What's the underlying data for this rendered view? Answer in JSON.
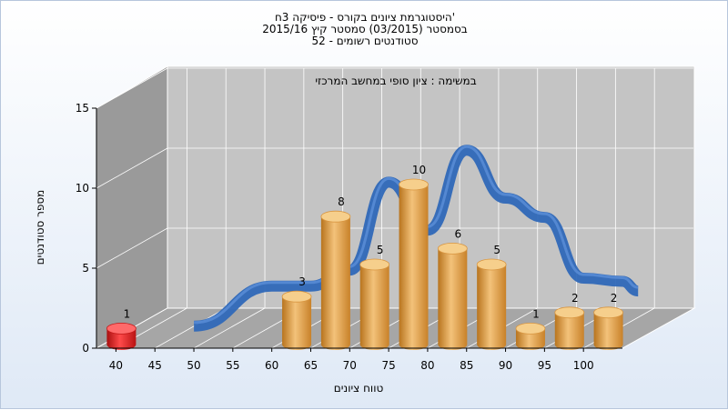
{
  "chart_data": {
    "type": "bar",
    "title_lines": [
      "היסטוגרמת ציונים בקורס - פיסיקה 3ח'",
      "בסמסטר  (03/2015)  סמסטר קיץ  2015/16",
      "סטודנטים רשומים - 52"
    ],
    "annotation": "במשימה : ציון סופי במחשב המרכזי",
    "xlabel": "טווח ציונים",
    "ylabel": "מספר סטודנטים",
    "ylim": [
      0,
      15
    ],
    "yticks": [
      0,
      5,
      10,
      15
    ],
    "x_ticks": [
      40,
      45,
      50,
      55,
      60,
      65,
      70,
      75,
      80,
      85,
      90,
      95,
      100
    ],
    "bars": [
      {
        "x": 40,
        "value": 1,
        "color": "#e41c1c"
      },
      {
        "x": 62.5,
        "value": 3,
        "color": "#e7a13f"
      },
      {
        "x": 67.5,
        "value": 8,
        "color": "#e7a13f"
      },
      {
        "x": 72.5,
        "value": 5,
        "color": "#e7a13f"
      },
      {
        "x": 77.5,
        "value": 10,
        "color": "#e7a13f"
      },
      {
        "x": 82.5,
        "value": 6,
        "color": "#e7a13f"
      },
      {
        "x": 87.5,
        "value": 5,
        "color": "#e7a13f"
      },
      {
        "x": 92.5,
        "value": 1,
        "color": "#e7a13f"
      },
      {
        "x": 97.5,
        "value": 2,
        "color": "#e7a13f"
      },
      {
        "x": 102.5,
        "value": 2,
        "color": "#e7a13f"
      }
    ],
    "curve": [
      {
        "x": 45,
        "y": 0
      },
      {
        "x": 55,
        "y": 2.5
      },
      {
        "x": 60,
        "y": 2.5
      },
      {
        "x": 65,
        "y": 3.5
      },
      {
        "x": 70,
        "y": 9
      },
      {
        "x": 75,
        "y": 6
      },
      {
        "x": 80,
        "y": 11
      },
      {
        "x": 85,
        "y": 8
      },
      {
        "x": 90,
        "y": 6.8
      },
      {
        "x": 95,
        "y": 3
      },
      {
        "x": 100,
        "y": 2.8
      },
      {
        "x": 102,
        "y": 2.2
      }
    ],
    "grid": true,
    "colors": {
      "bar": "#e7a13f",
      "highlight_bar": "#e41c1c",
      "curve": "#2f68b8",
      "curve_hidden": "#707070"
    }
  }
}
